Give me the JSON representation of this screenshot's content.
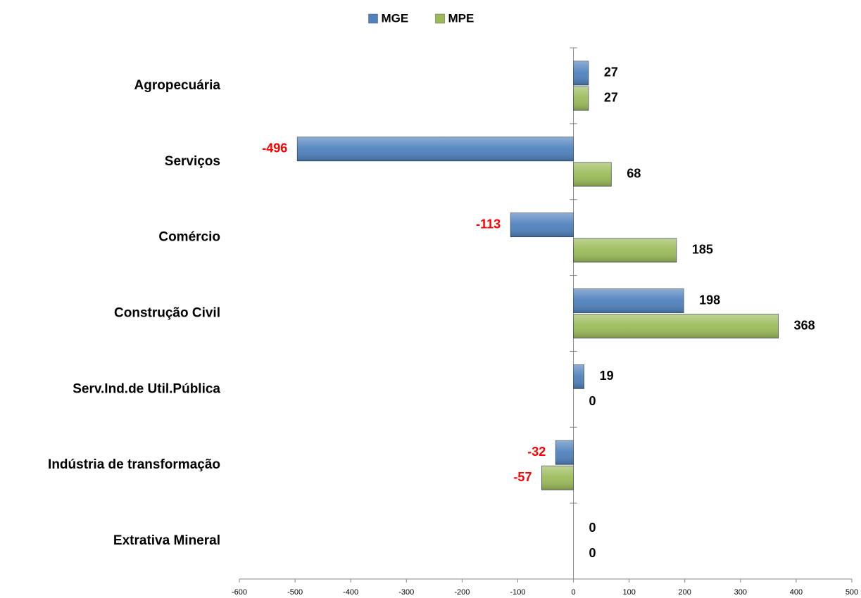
{
  "chart_data": {
    "type": "hbar",
    "categories": [
      "Agropecuária",
      "Serviços",
      "Comércio",
      "Construção Civil",
      "Serv.Ind.de Util.Pública",
      "Indústria de transformação",
      "Extrativa Mineral"
    ],
    "series": [
      {
        "name": "MGE",
        "color": "#4f81bd",
        "values": [
          27,
          -496,
          -113,
          198,
          19,
          -32,
          0
        ]
      },
      {
        "name": "MPE",
        "color": "#9bbb59",
        "values": [
          27,
          68,
          185,
          368,
          0,
          -57,
          0
        ]
      }
    ],
    "xlim": [
      -600,
      500
    ],
    "xticks": [
      -600,
      -500,
      -400,
      -300,
      -200,
      -100,
      0,
      100,
      200,
      300,
      400,
      500
    ],
    "legend": "top"
  }
}
